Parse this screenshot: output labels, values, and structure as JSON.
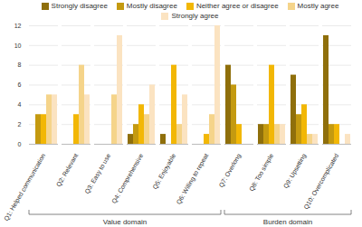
{
  "chart_data": {
    "type": "bar",
    "categories": [
      "Q1: Helped communication",
      "Q2: Relevant",
      "Q3: Easy to use",
      "Q4: Comprehensive",
      "Q5: Enjoyable",
      "Q6: Willing to repeat",
      "Q7: Overlong",
      "Q8: Too simple",
      "Q9: Upsetting",
      "Q10: Overcomplicated"
    ],
    "series": [
      {
        "name": "Strongly disagree",
        "color": "#8f6f0b",
        "values": [
          0,
          0,
          0,
          1,
          1,
          0,
          8,
          2,
          7,
          11
        ]
      },
      {
        "name": "Mostly disagree",
        "color": "#c49a10",
        "values": [
          3,
          0,
          0,
          2,
          0,
          0,
          6,
          2,
          3,
          2
        ]
      },
      {
        "name": "Neither agree or disagree",
        "color": "#f2b705",
        "values": [
          3,
          3,
          0,
          4,
          8,
          1,
          2,
          8,
          4,
          2
        ]
      },
      {
        "name": "Mostly agree",
        "color": "#f5d48a",
        "values": [
          5,
          8,
          5,
          3,
          2,
          3,
          0,
          2,
          1,
          0
        ]
      },
      {
        "name": "Strongly agree",
        "color": "#fbe3c1",
        "values": [
          5,
          5,
          11,
          6,
          5,
          12,
          0,
          2,
          1,
          1
        ]
      }
    ],
    "groups": [
      {
        "label": "Value domain",
        "from": "Q1: Helped communication",
        "to": "Q6: Willing to repeat"
      },
      {
        "label": "Burden domain",
        "from": "Q7: Overlong",
        "to": "Q10: Overcomplicated"
      }
    ],
    "ylim": [
      0,
      12
    ],
    "yticks": [
      0,
      2,
      4,
      6,
      8,
      10,
      12
    ],
    "grid": true,
    "legend": "top"
  }
}
